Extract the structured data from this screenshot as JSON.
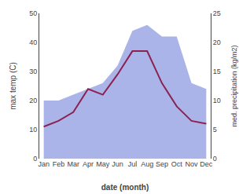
{
  "chart_data": {
    "type": "line",
    "categories": [
      "Jan",
      "Feb",
      "Mar",
      "Apr",
      "May",
      "Jun",
      "Jul",
      "Aug",
      "Sep",
      "Oct",
      "Nov",
      "Dec"
    ],
    "series": [
      {
        "name": "med. precipitation (kg/m2)",
        "type": "area",
        "axis": "y2",
        "color": "#aab4e8",
        "values": [
          10,
          10,
          11,
          12,
          13,
          16,
          22,
          23,
          21,
          21,
          13,
          12
        ]
      },
      {
        "name": "max temp (C)",
        "type": "line",
        "color": "#8b2252",
        "values": [
          11,
          13,
          16,
          24,
          22,
          29,
          37,
          37,
          26,
          18,
          13,
          12
        ]
      }
    ],
    "xlabel": "date (month)",
    "ylabel": "max temp (C)",
    "y2label": "med. precipitation (kg/m2)",
    "ylim": [
      0,
      50
    ],
    "yticks": [
      0,
      10,
      20,
      30,
      40,
      50
    ],
    "y2lim": [
      0,
      25
    ],
    "y2ticks": [
      0,
      5,
      10,
      15,
      20,
      25
    ],
    "grid": false
  }
}
